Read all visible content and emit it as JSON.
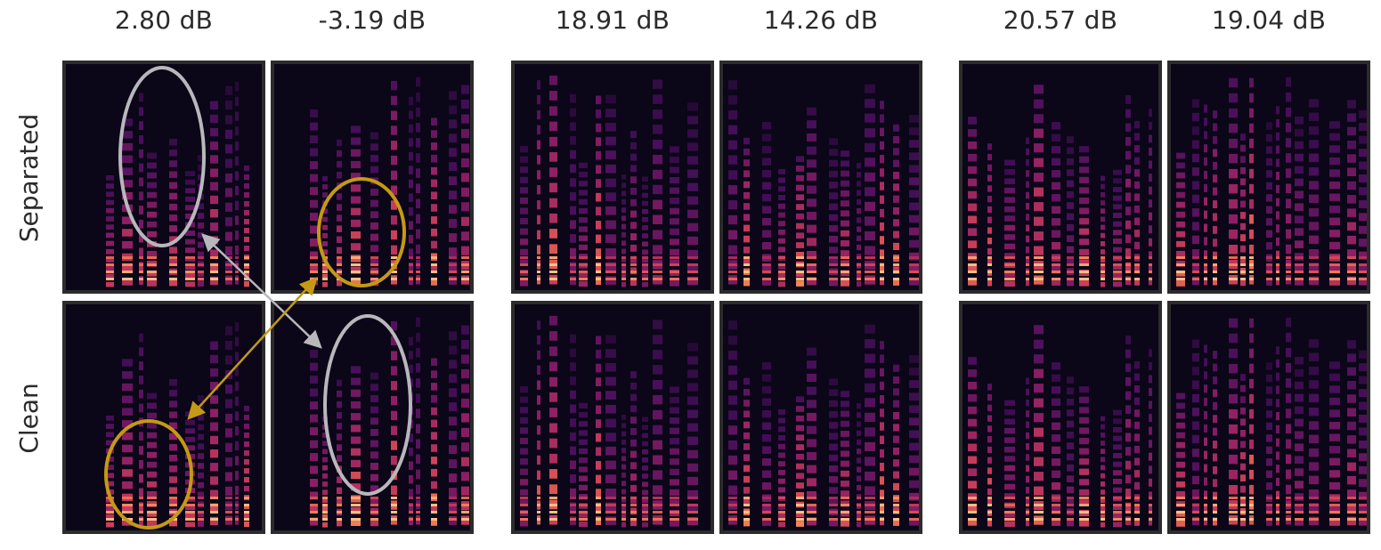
{
  "column_titles": [
    "2.80 dB",
    "-3.19 dB",
    "18.91 dB",
    "14.26 dB",
    "20.57 dB",
    "19.04 dB"
  ],
  "row_labels": [
    "Separated",
    "Clean"
  ],
  "colors": {
    "background": "#0b0618",
    "border": "#2c2c2c",
    "highlight_gray": "#b8b8bc",
    "highlight_gold": "#c49a14"
  },
  "panels": [
    {
      "row": "Separated",
      "column": "2.80 dB"
    },
    {
      "row": "Separated",
      "column": "-3.19 dB"
    },
    {
      "row": "Separated",
      "column": "18.91 dB"
    },
    {
      "row": "Separated",
      "column": "14.26 dB"
    },
    {
      "row": "Separated",
      "column": "20.57 dB"
    },
    {
      "row": "Separated",
      "column": "19.04 dB"
    },
    {
      "row": "Clean",
      "column": "2.80 dB"
    },
    {
      "row": "Clean",
      "column": "-3.19 dB"
    },
    {
      "row": "Clean",
      "column": "18.91 dB"
    },
    {
      "row": "Clean",
      "column": "14.26 dB"
    },
    {
      "row": "Clean",
      "column": "20.57 dB"
    },
    {
      "row": "Clean",
      "column": "19.04 dB"
    }
  ]
}
